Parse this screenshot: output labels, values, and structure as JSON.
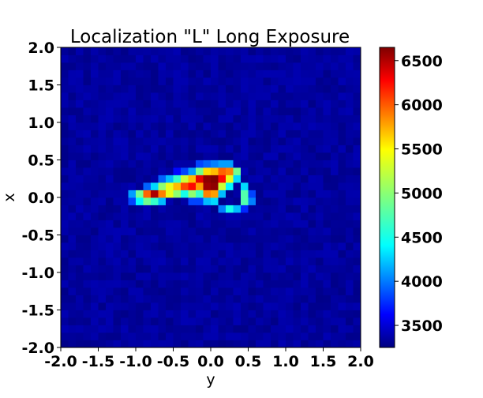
{
  "chart_data": {
    "type": "heatmap",
    "title": "Localization \"L\" Long Exposure",
    "xlabel": "y",
    "ylabel": "x",
    "xlim": [
      -2.0,
      2.0
    ],
    "ylim": [
      -2.0,
      2.0
    ],
    "x_ticks": [
      "-2.0",
      "-1.5",
      "-1.0",
      "-0.5",
      "0.0",
      "0.5",
      "1.0",
      "1.5",
      "2.0"
    ],
    "y_ticks": [
      "2.0",
      "1.5",
      "1.0",
      "0.5",
      "0.0",
      "-0.5",
      "-1.0",
      "-1.5",
      "-2.0"
    ],
    "colormap": "jet",
    "colorbar": {
      "min": 3250,
      "max": 6650,
      "ticks": [
        "3500",
        "4000",
        "4500",
        "5000",
        "5500",
        "6000",
        "6500"
      ]
    },
    "background_value": 3350,
    "grid": false,
    "hot_cells": [
      {
        "x": 0.35,
        "y": 0.35,
        "value": 4900
      },
      {
        "x": 0.35,
        "y": 0.25,
        "value": 4400
      },
      {
        "x": 0.25,
        "y": 0.45,
        "value": 4200
      },
      {
        "x": 0.25,
        "y": 0.35,
        "value": 5800
      },
      {
        "x": 0.25,
        "y": 0.25,
        "value": 5300
      },
      {
        "x": 0.25,
        "y": 0.15,
        "value": 4500
      },
      {
        "x": 0.15,
        "y": 0.45,
        "value": 4200
      },
      {
        "x": 0.15,
        "y": 0.35,
        "value": 5900
      },
      {
        "x": 0.15,
        "y": 0.25,
        "value": 6200
      },
      {
        "x": 0.15,
        "y": 0.15,
        "value": 5200
      },
      {
        "x": 0.15,
        "y": 0.05,
        "value": 4300
      },
      {
        "x": 0.05,
        "y": 0.45,
        "value": 4100
      },
      {
        "x": 0.05,
        "y": 0.35,
        "value": 5600
      },
      {
        "x": 0.05,
        "y": 0.25,
        "value": 6650
      },
      {
        "x": 0.05,
        "y": 0.15,
        "value": 6600
      },
      {
        "x": 0.05,
        "y": 0.05,
        "value": 5700
      },
      {
        "x": 0.05,
        "y": -0.05,
        "value": 4400
      },
      {
        "x": -0.05,
        "y": 0.45,
        "value": 4000
      },
      {
        "x": -0.05,
        "y": 0.35,
        "value": 5500
      },
      {
        "x": -0.05,
        "y": 0.25,
        "value": 6600
      },
      {
        "x": -0.05,
        "y": 0.15,
        "value": 6550
      },
      {
        "x": -0.05,
        "y": 0.05,
        "value": 5800
      },
      {
        "x": -0.05,
        "y": -0.05,
        "value": 4300
      },
      {
        "x": -0.15,
        "y": 0.45,
        "value": 3900
      },
      {
        "x": -0.15,
        "y": 0.35,
        "value": 4900
      },
      {
        "x": -0.15,
        "y": 0.25,
        "value": 6300
      },
      {
        "x": -0.15,
        "y": 0.15,
        "value": 5700
      },
      {
        "x": -0.15,
        "y": 0.05,
        "value": 4700
      },
      {
        "x": -0.15,
        "y": -0.05,
        "value": 3900
      },
      {
        "x": -0.25,
        "y": 0.35,
        "value": 4200
      },
      {
        "x": -0.25,
        "y": 0.25,
        "value": 5600
      },
      {
        "x": -0.25,
        "y": 0.15,
        "value": 6200
      },
      {
        "x": -0.25,
        "y": 0.05,
        "value": 5000
      },
      {
        "x": -0.25,
        "y": -0.05,
        "value": 3900
      },
      {
        "x": -0.35,
        "y": 0.35,
        "value": 3900
      },
      {
        "x": -0.35,
        "y": 0.25,
        "value": 5200
      },
      {
        "x": -0.35,
        "y": 0.15,
        "value": 6000
      },
      {
        "x": -0.35,
        "y": 0.05,
        "value": 4600
      },
      {
        "x": -0.45,
        "y": 0.35,
        "value": 3700
      },
      {
        "x": -0.45,
        "y": 0.25,
        "value": 4700
      },
      {
        "x": -0.45,
        "y": 0.15,
        "value": 5600
      },
      {
        "x": -0.45,
        "y": 0.05,
        "value": 5000
      },
      {
        "x": -0.55,
        "y": 0.25,
        "value": 4300
      },
      {
        "x": -0.55,
        "y": 0.15,
        "value": 5300
      },
      {
        "x": -0.55,
        "y": 0.05,
        "value": 5300
      },
      {
        "x": -0.65,
        "y": 0.25,
        "value": 4000
      },
      {
        "x": -0.65,
        "y": 0.15,
        "value": 5000
      },
      {
        "x": -0.65,
        "y": 0.05,
        "value": 5800
      },
      {
        "x": -0.65,
        "y": -0.05,
        "value": 4300
      },
      {
        "x": -0.75,
        "y": 0.15,
        "value": 4400
      },
      {
        "x": -0.75,
        "y": 0.05,
        "value": 6500
      },
      {
        "x": -0.75,
        "y": -0.05,
        "value": 4700
      },
      {
        "x": -0.85,
        "y": 0.15,
        "value": 4000
      },
      {
        "x": -0.85,
        "y": 0.05,
        "value": 5900
      },
      {
        "x": -0.85,
        "y": -0.05,
        "value": 4900
      },
      {
        "x": -0.95,
        "y": 0.05,
        "value": 4900
      },
      {
        "x": -0.95,
        "y": -0.05,
        "value": 4500
      },
      {
        "x": -1.05,
        "y": 0.05,
        "value": 4200
      },
      {
        "x": -1.05,
        "y": -0.05,
        "value": 3900
      },
      {
        "x": 0.45,
        "y": 0.15,
        "value": 4400
      },
      {
        "x": 0.45,
        "y": 0.05,
        "value": 4800
      },
      {
        "x": 0.45,
        "y": -0.05,
        "value": 4800
      },
      {
        "x": 0.45,
        "y": -0.15,
        "value": 3800
      },
      {
        "x": 0.55,
        "y": 0.05,
        "value": 3900
      },
      {
        "x": 0.55,
        "y": -0.05,
        "value": 4100
      },
      {
        "x": 0.25,
        "y": -0.15,
        "value": 4600
      },
      {
        "x": 0.35,
        "y": -0.15,
        "value": 4300
      },
      {
        "x": 0.15,
        "y": -0.15,
        "value": 4100
      }
    ]
  }
}
